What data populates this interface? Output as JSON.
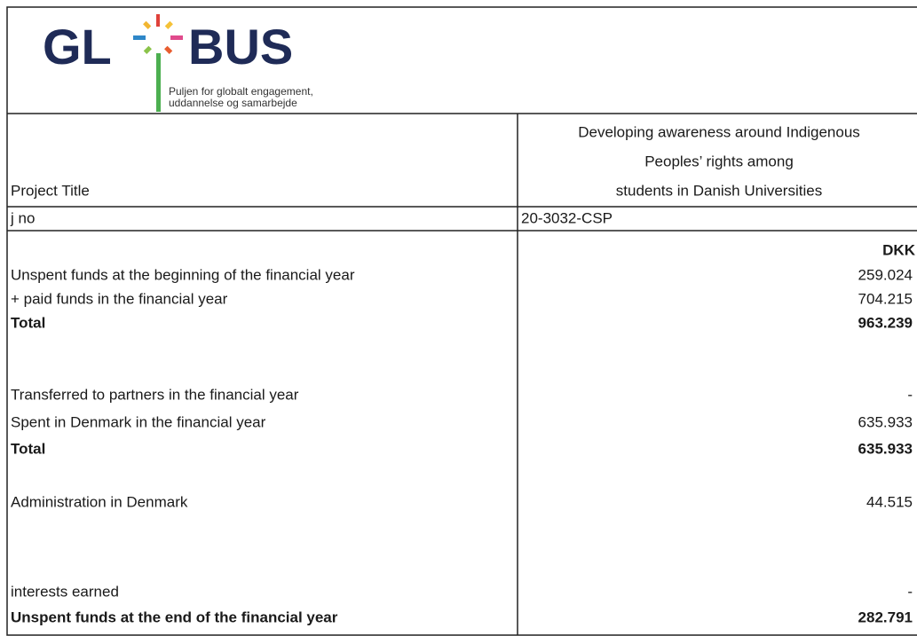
{
  "header": {
    "logo": {
      "left": "GL",
      "right": "BUS",
      "tagline": [
        "Puljen for globalt engagement,",
        "uddannelse og samarbejde"
      ]
    }
  },
  "table": {
    "title_label": "Project Title",
    "title_lines": [
      "Developing awareness around Indigenous",
      "Peoples’ rights among",
      "students in Danish Universities"
    ],
    "jno_label": "j no",
    "jno": "20-3032-CSP",
    "currency": "DKK",
    "rows": [
      {
        "label": "Unspent funds at the beginning of the financial year",
        "value": "259.024",
        "bold": false
      },
      {
        "label": "+ paid funds in the financial year",
        "value": "704.215",
        "bold": false
      },
      {
        "label": "Total",
        "value": "963.239",
        "bold": true
      },
      {
        "label": "Transferred to partners in the financial year",
        "value": "-",
        "bold": false
      },
      {
        "label": "Spent in Denmark in the financial year",
        "value": "635.933",
        "bold": false
      },
      {
        "label": "Total",
        "value": "635.933",
        "bold": true
      },
      {
        "label": "Administration in Denmark",
        "value": "44.515",
        "bold": false
      },
      {
        "label": "interests earned",
        "value": "-",
        "bold": false
      },
      {
        "label": "Unspent funds at the end of the financial year",
        "value": "282.791",
        "bold": true
      }
    ]
  }
}
